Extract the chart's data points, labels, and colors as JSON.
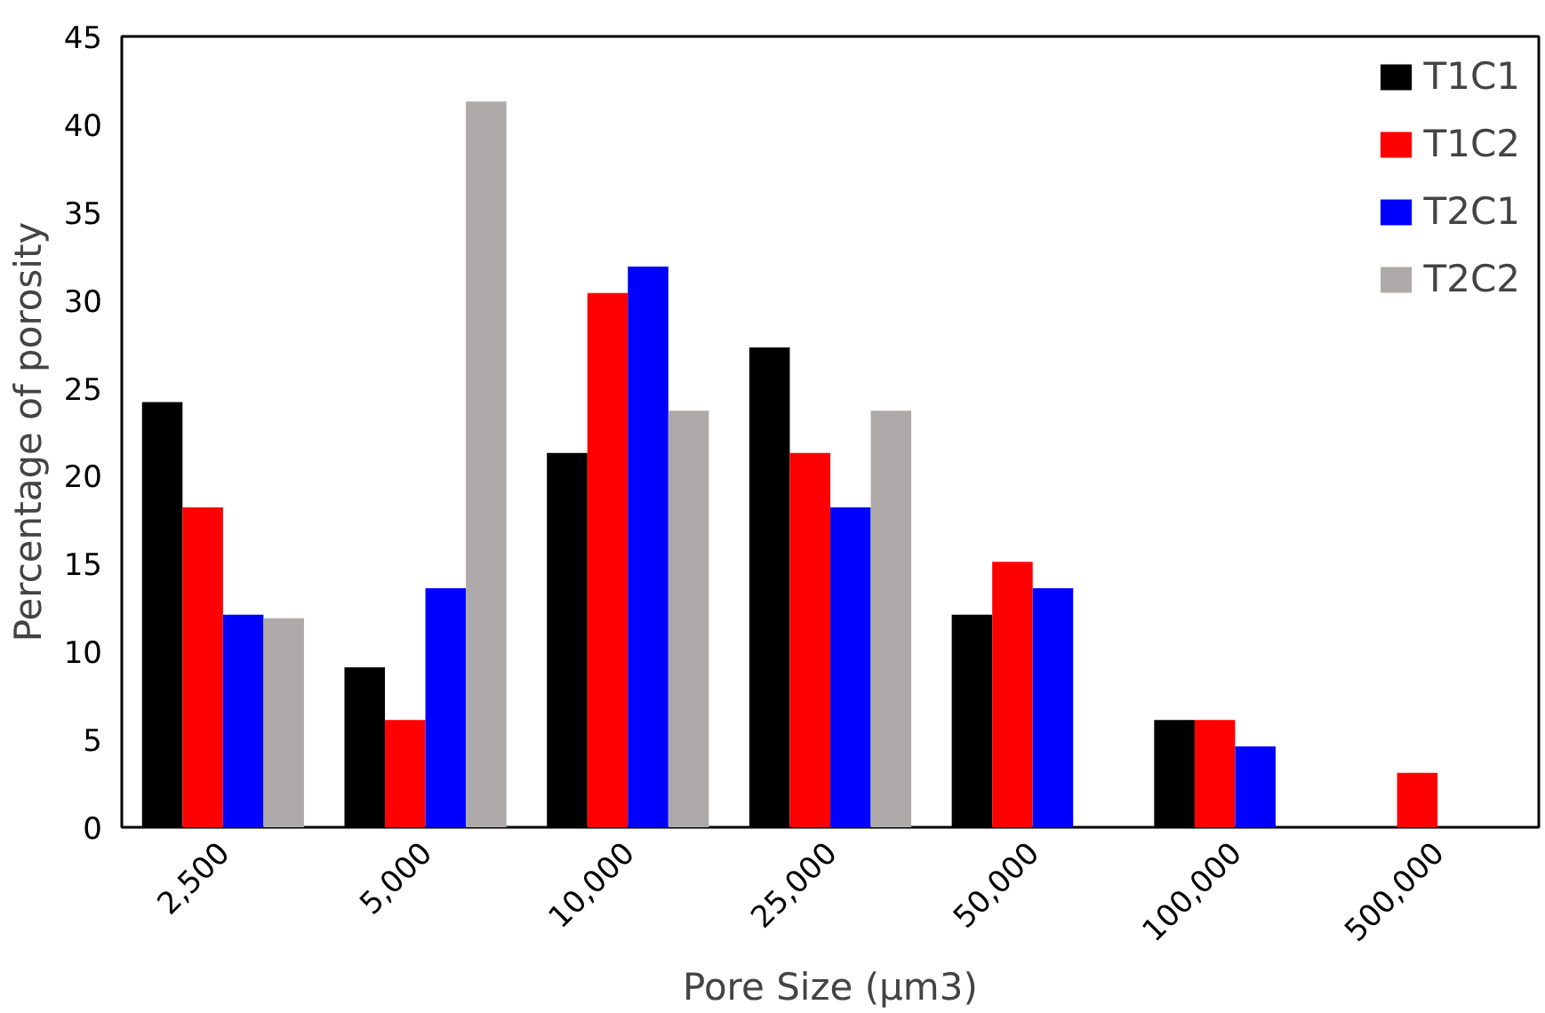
{
  "chart_data": {
    "type": "bar",
    "xlabel": "Pore Size (µm3)",
    "ylabel": "Percentage of porosity",
    "categories": [
      "2,500",
      "5,000",
      "10,000",
      "25,000",
      "50,000",
      "100,000",
      "500,000"
    ],
    "series": [
      {
        "name": "T1C1",
        "color": "#000000",
        "values": [
          24.2,
          9.1,
          21.3,
          27.3,
          12.1,
          6.1,
          null
        ]
      },
      {
        "name": "T1C2",
        "color": "#ff0000",
        "values": [
          18.2,
          6.1,
          30.4,
          21.3,
          15.1,
          6.1,
          3.1
        ]
      },
      {
        "name": "T2C1",
        "color": "#0000ff",
        "values": [
          12.1,
          13.6,
          31.9,
          18.2,
          13.6,
          4.6,
          null
        ]
      },
      {
        "name": "T2C2",
        "color": "#aeaaaa",
        "values": [
          11.9,
          41.3,
          23.7,
          23.7,
          null,
          null,
          null
        ]
      }
    ],
    "ylim": [
      0,
      45
    ],
    "yticks": [
      0,
      5,
      10,
      15,
      20,
      25,
      30,
      35,
      40,
      45
    ],
    "grid": false,
    "legend": "top right"
  }
}
